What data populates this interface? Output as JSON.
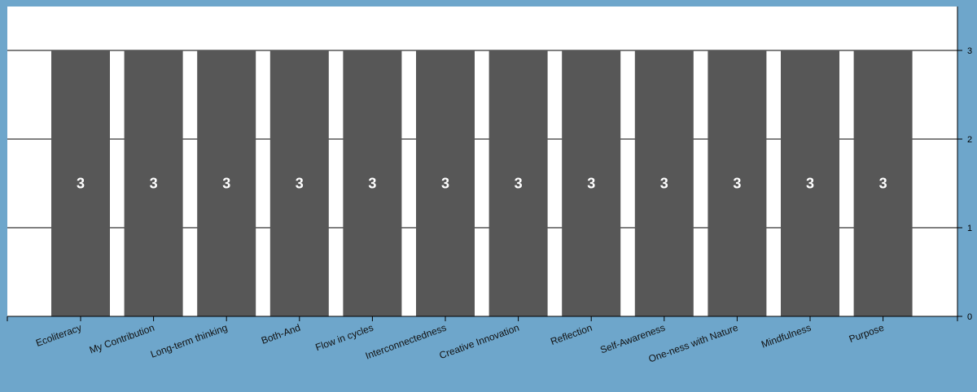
{
  "colors": {
    "background": "#6ea6cb",
    "plot_area": "#ffffff",
    "bar": "#575757",
    "bar_label": "#ffffff",
    "axis": "#000000",
    "gridline": "#000000"
  },
  "chart_data": {
    "type": "bar",
    "categories": [
      "Ecoliteracy",
      "My Contribution",
      "Long-term thinking",
      "Both-And",
      "Flow in cycles",
      "Interconnectedness",
      "Creative Innovation",
      "Reflection",
      "Self-Awareness",
      "One-ness with Nature",
      "Mindfulness",
      "Purpose"
    ],
    "values": [
      3,
      3,
      3,
      3,
      3,
      3,
      3,
      3,
      3,
      3,
      3,
      3
    ],
    "data_labels": [
      "3",
      "3",
      "3",
      "3",
      "3",
      "3",
      "3",
      "3",
      "3",
      "3",
      "3",
      "3"
    ],
    "y_ticks": [
      "0",
      "1",
      "2",
      "3"
    ],
    "ylim": [
      0,
      3
    ],
    "y_axis_position": "right",
    "grid": true,
    "x_tick_label_rotation": "angled",
    "title": "",
    "xlabel": "",
    "ylabel": ""
  }
}
